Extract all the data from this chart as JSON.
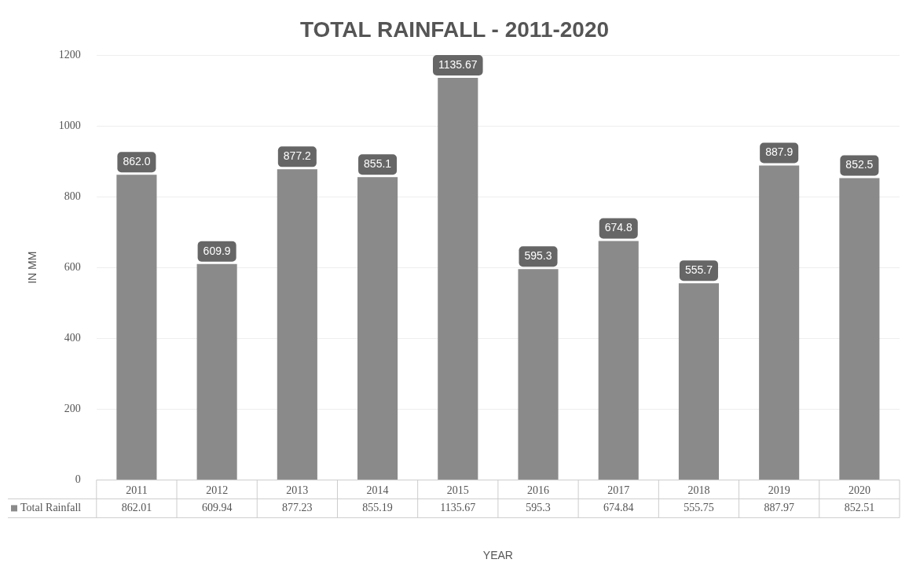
{
  "chart_data": {
    "type": "bar",
    "title": "TOTAL RAINFALL - 2011-2020",
    "xlabel": "YEAR",
    "ylabel": "IN MM",
    "categories": [
      "2011",
      "2012",
      "2013",
      "2014",
      "2015",
      "2016",
      "2017",
      "2018",
      "2019",
      "2020"
    ],
    "series": [
      {
        "name": "Total Rainfall",
        "color": "#8a8a8a",
        "values": [
          862.01,
          609.94,
          877.23,
          855.19,
          1135.67,
          595.3,
          674.84,
          555.75,
          887.97,
          852.51
        ],
        "value_labels": [
          "862.01",
          "609.94",
          "877.23",
          "855.19",
          "1135.67",
          "595.3",
          "674.84",
          "555.75",
          "887.97",
          "852.51"
        ]
      }
    ],
    "annotations": [
      {
        "text": "862.0",
        "x": "2011",
        "y": 862.01
      },
      {
        "text": "609.9",
        "x": "2012",
        "y": 609.94
      },
      {
        "text": "877.2",
        "x": "2013",
        "y": 877.23
      },
      {
        "text": "855.1",
        "x": "2014",
        "y": 855.19
      },
      {
        "text": "1135.67",
        "x": "2015",
        "y": 1135.67
      },
      {
        "text": "595.3",
        "x": "2016",
        "y": 595.3
      },
      {
        "text": "674.8",
        "x": "2017",
        "y": 674.84
      },
      {
        "text": "555.7",
        "x": "2018",
        "y": 555.75
      },
      {
        "text": "887.9",
        "x": "2019",
        "y": 887.97
      },
      {
        "text": "852.5",
        "x": "2020",
        "y": 852.51
      }
    ],
    "ylim": [
      0,
      1200
    ],
    "yticks": [
      0,
      200,
      400,
      600,
      800,
      1000,
      1200
    ],
    "grid": "y",
    "legend": "bottom"
  }
}
